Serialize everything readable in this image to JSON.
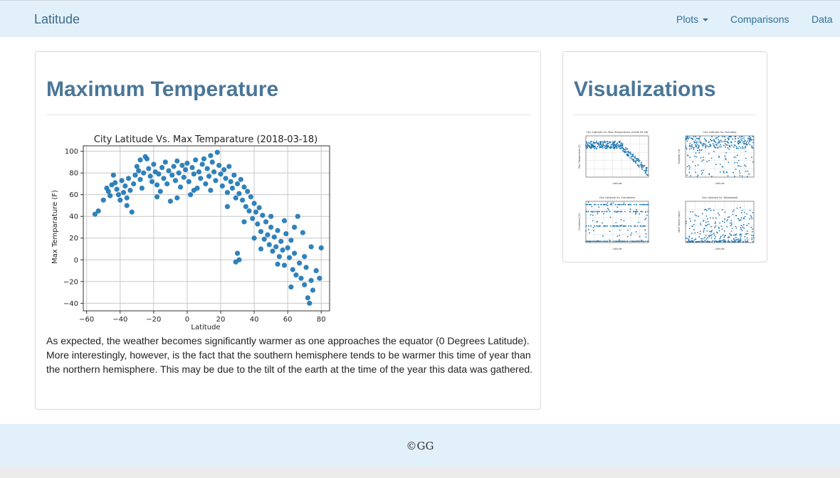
{
  "navbar": {
    "brand": "Latitude",
    "links": [
      {
        "label": "Plots",
        "dropdown": true
      },
      {
        "label": "Comparisons"
      },
      {
        "label": "Data"
      }
    ]
  },
  "main_panel": {
    "title": "Maximum Temperature",
    "description": "As expected, the weather becomes significantly warmer as one approaches the equator (0 Degrees Latitude). More interestingly, however, is the fact that the southern hemisphere tends to be warmer this time of year than the northern hemisphere. This may be due to the tilt of the earth at the time of the year this data was gathered."
  },
  "side_panel": {
    "title": "Visualizations",
    "thumbnails": [
      {
        "title": "City Latitude Vs. Max Temperature (2018-03-18)",
        "xlabel": "Latitude",
        "ylabel": "Max Temperature (F)"
      },
      {
        "title": "City Latitude Vs. Humidity",
        "xlabel": "Latitude",
        "ylabel": "Humidity (%)"
      },
      {
        "title": "City Latitude Vs. Cloudiness",
        "xlabel": "Latitude",
        "ylabel": "Cloudiness (%)"
      },
      {
        "title": "City Latitude Vs. Windspeed",
        "xlabel": "Latitude",
        "ylabel": "Wind Speed (mph)"
      }
    ]
  },
  "footer": {
    "text": "©GG"
  },
  "colors": {
    "accent": "#4a7698",
    "nav_bg": "#e2f0fa",
    "marker": "#1f77b4"
  },
  "chart_data": {
    "type": "scatter",
    "title": "City Latitude Vs. Max Temparature (2018-03-18)",
    "xlabel": "Latitude",
    "ylabel": "Max Temparature (F)",
    "xlim": [
      -62,
      85
    ],
    "ylim": [
      -47,
      105
    ],
    "xticks": [
      -60,
      -40,
      -20,
      0,
      20,
      40,
      60,
      80
    ],
    "yticks": [
      -40,
      -20,
      0,
      20,
      40,
      60,
      80,
      100
    ],
    "xtick_labels": [
      "−60",
      "−40",
      "−20",
      "0",
      "20",
      "40",
      "60",
      "80"
    ],
    "ytick_labels": [
      "−40",
      "−20",
      "0",
      "20",
      "40",
      "60",
      "80",
      "100"
    ],
    "grid": true,
    "points": [
      [
        -55,
        42
      ],
      [
        -53,
        45
      ],
      [
        -48,
        66
      ],
      [
        -47,
        63
      ],
      [
        -46,
        59
      ],
      [
        -45,
        69
      ],
      [
        -43,
        71
      ],
      [
        -42,
        65
      ],
      [
        -41,
        60
      ],
      [
        -40,
        55
      ],
      [
        -39,
        73
      ],
      [
        -38,
        62
      ],
      [
        -37,
        68
      ],
      [
        -36,
        57
      ],
      [
        -35,
        75
      ],
      [
        -34,
        64
      ],
      [
        -33,
        44
      ],
      [
        -32,
        70
      ],
      [
        -31,
        78
      ],
      [
        -30,
        86
      ],
      [
        -29,
        82
      ],
      [
        -28,
        74
      ],
      [
        -27,
        66
      ],
      [
        -26,
        80
      ],
      [
        -25,
        95
      ],
      [
        -24,
        93
      ],
      [
        -23,
        84
      ],
      [
        -22,
        77
      ],
      [
        -21,
        72
      ],
      [
        -20,
        88
      ],
      [
        -19,
        81
      ],
      [
        -18,
        69
      ],
      [
        -17,
        79
      ],
      [
        -16,
        63
      ],
      [
        -15,
        85
      ],
      [
        -14,
        75
      ],
      [
        -13,
        90
      ],
      [
        -12,
        70
      ],
      [
        -11,
        82
      ],
      [
        -10,
        54
      ],
      [
        -9,
        78
      ],
      [
        -8,
        86
      ],
      [
        -7,
        73
      ],
      [
        -6,
        91
      ],
      [
        -5,
        80
      ],
      [
        -4,
        67
      ],
      [
        -3,
        87
      ],
      [
        -2,
        76
      ],
      [
        -1,
        83
      ],
      [
        0,
        89
      ],
      [
        1,
        72
      ],
      [
        2,
        60
      ],
      [
        3,
        85
      ],
      [
        4,
        79
      ],
      [
        5,
        92
      ],
      [
        6,
        66
      ],
      [
        7,
        81
      ],
      [
        8,
        75
      ],
      [
        9,
        88
      ],
      [
        10,
        93
      ],
      [
        11,
        70
      ],
      [
        12,
        84
      ],
      [
        13,
        77
      ],
      [
        14,
        64
      ],
      [
        15,
        90
      ],
      [
        16,
        81
      ],
      [
        17,
        73
      ],
      [
        18,
        99
      ],
      [
        19,
        87
      ],
      [
        20,
        79
      ],
      [
        21,
        68
      ],
      [
        22,
        83
      ],
      [
        23,
        75
      ],
      [
        24,
        62
      ],
      [
        25,
        86
      ],
      [
        26,
        72
      ],
      [
        27,
        66
      ],
      [
        28,
        78
      ],
      [
        29,
        57
      ],
      [
        30,
        70
      ],
      [
        31,
        61
      ],
      [
        32,
        74
      ],
      [
        33,
        55
      ],
      [
        34,
        67
      ],
      [
        35,
        49
      ],
      [
        36,
        63
      ],
      [
        37,
        45
      ],
      [
        38,
        58
      ],
      [
        39,
        38
      ],
      [
        40,
        52
      ],
      [
        41,
        44
      ],
      [
        42,
        33
      ],
      [
        43,
        48
      ],
      [
        44,
        26
      ],
      [
        45,
        41
      ],
      [
        46,
        19
      ],
      [
        47,
        35
      ],
      [
        48,
        23
      ],
      [
        49,
        14
      ],
      [
        50,
        30
      ],
      [
        51,
        8
      ],
      [
        52,
        21
      ],
      [
        53,
        12
      ],
      [
        54,
        27
      ],
      [
        55,
        3
      ],
      [
        56,
        17
      ],
      [
        57,
        9
      ],
      [
        58,
        -5
      ],
      [
        59,
        24
      ],
      [
        60,
        11
      ],
      [
        61,
        2
      ],
      [
        62,
        18
      ],
      [
        63,
        -9
      ],
      [
        64,
        6
      ],
      [
        65,
        -14
      ],
      [
        66,
        40
      ],
      [
        67,
        -3
      ],
      [
        68,
        -17
      ],
      [
        69,
        25
      ],
      [
        70,
        -23
      ],
      [
        71,
        -7
      ],
      [
        72,
        -35
      ],
      [
        73,
        -40
      ],
      [
        74,
        -19
      ],
      [
        75,
        -28
      ],
      [
        77,
        -10
      ],
      [
        79,
        -17
      ],
      [
        80,
        11
      ],
      [
        29,
        -2
      ],
      [
        31,
        0
      ],
      [
        30,
        6
      ],
      [
        -50,
        55
      ],
      [
        -44,
        78
      ],
      [
        -36,
        50
      ],
      [
        -28,
        92
      ],
      [
        -18,
        58
      ],
      [
        -6,
        57
      ],
      [
        4,
        64
      ],
      [
        14,
        96
      ],
      [
        24,
        49
      ],
      [
        34,
        35
      ],
      [
        44,
        10
      ],
      [
        54,
        -4
      ],
      [
        64,
        30
      ],
      [
        74,
        12
      ],
      [
        62,
        -25
      ],
      [
        70,
        3
      ],
      [
        50,
        40
      ],
      [
        40,
        20
      ],
      [
        58,
        36
      ]
    ]
  }
}
